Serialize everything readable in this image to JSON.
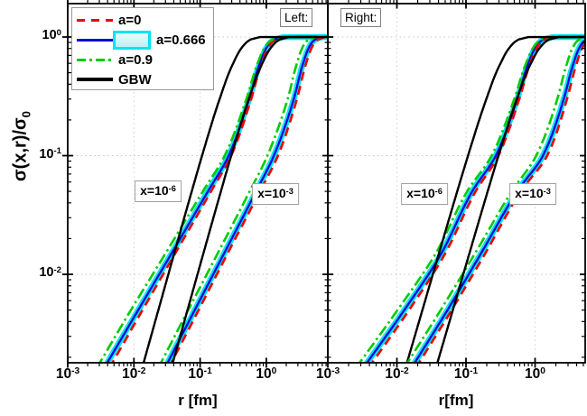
{
  "chart_data": {
    "type": "line",
    "ylabel": {
      "main": "σ(x,r)/σ",
      "sub": "0"
    },
    "y_ticks": [
      {
        "base": "10",
        "exp": "0"
      },
      {
        "base": "10",
        "exp": "-1"
      },
      {
        "base": "10",
        "exp": "-2"
      }
    ],
    "y_tick_logs": [
      0,
      -1,
      -2
    ],
    "x_ticks": [
      {
        "base": "10",
        "exp": "-3"
      },
      {
        "base": "10",
        "exp": "-2"
      },
      {
        "base": "10",
        "exp": "-1"
      },
      {
        "base": "10",
        "exp": "0"
      }
    ],
    "x_tick_logs": [
      -3,
      -2,
      -1,
      0
    ],
    "x_range_log": [
      -3,
      0.93
    ],
    "y_range_log": [
      -2.745,
      0.281
    ],
    "grid": "dotted",
    "legend_position": "top-left",
    "N_levels": [
      0.0016,
      0.005,
      0.015,
      0.05,
      0.1,
      0.3,
      0.6,
      0.9,
      0.98,
      0.999
    ],
    "series_styles": [
      {
        "key": "a0666band",
        "name": "a=0.666 band",
        "color": "#00e6f0",
        "style": "solid",
        "width": 6.5
      },
      {
        "key": "a0666",
        "name": "a=0.666",
        "color": "#0000dd",
        "style": "solid",
        "width": 2.3
      },
      {
        "key": "a0",
        "name": "a=0",
        "color": "#ee0000",
        "style": "dashed",
        "width": 2.6
      },
      {
        "key": "a09",
        "name": "a=0.9",
        "color": "#00cc00",
        "style": "dashdot",
        "width": 2.6
      },
      {
        "key": "gbw",
        "name": "GBW",
        "color": "#000000",
        "style": "solid",
        "width": 2.4
      }
    ],
    "panels": [
      {
        "tag": "Left:",
        "xlabel": "r [fm]",
        "groups": [
          {
            "label": {
              "base": "x=10",
              "exp": "-6"
            },
            "curves": {
              "gbw": [
                0.0132,
                0.0234,
                0.0406,
                0.0747,
                0.107,
                0.197,
                0.316,
                0.5,
                0.653,
                0.8
              ],
              "a0": [
                0.0042,
                0.0135,
                0.042,
                0.146,
                0.295,
                0.59,
                0.85,
                1.21,
                1.56,
                1.9
              ],
              "a0666": [
                0.0035,
                0.0116,
                0.037,
                0.131,
                0.27,
                0.55,
                0.8,
                1.15,
                1.5,
                1.8
              ],
              "a09": [
                0.0027,
                0.009,
                0.03,
                0.11,
                0.235,
                0.5,
                0.74,
                1.08,
                1.42,
                1.7
              ]
            }
          },
          {
            "label": {
              "base": "x=10",
              "exp": "-3"
            },
            "curves": {
              "gbw": [
                0.0364,
                0.0645,
                0.112,
                0.206,
                0.295,
                0.543,
                0.871,
                1.38,
                1.8,
                2.2
              ],
              "a0": [
                0.033,
                0.095,
                0.26,
                0.8,
                1.5,
                2.9,
                4.0,
                5.4,
                6.6,
                7.6
              ],
              "a0666": [
                0.029,
                0.083,
                0.23,
                0.7,
                1.3,
                2.6,
                3.6,
                4.9,
                6.0,
                7.0
              ],
              "a09": [
                0.023,
                0.066,
                0.184,
                0.56,
                1.04,
                2.1,
                2.9,
                3.9,
                4.8,
                5.6
              ]
            }
          }
        ]
      },
      {
        "tag": "Right:",
        "xlabel": "r[fm]",
        "groups": [
          {
            "label": {
              "base": "x=10",
              "exp": "-6"
            },
            "curves": {
              "gbw": [
                0.0132,
                0.0234,
                0.0406,
                0.0747,
                0.107,
                0.197,
                0.316,
                0.5,
                0.653,
                0.8
              ],
              "a0": [
                0.0038,
                0.015,
                0.05,
                0.138,
                0.295,
                0.59,
                0.85,
                1.21,
                1.56,
                1.9
              ],
              "a0666": [
                0.0032,
                0.0128,
                0.044,
                0.123,
                0.27,
                0.55,
                0.8,
                1.15,
                1.5,
                1.8
              ],
              "a09": [
                0.0025,
                0.0102,
                0.0365,
                0.104,
                0.235,
                0.5,
                0.74,
                1.08,
                1.42,
                1.7
              ]
            }
          },
          {
            "label": {
              "base": "x=10",
              "exp": "-3"
            },
            "curves": {
              "gbw": [
                0.0364,
                0.0645,
                0.112,
                0.206,
                0.295,
                0.543,
                0.871,
                1.38,
                1.8,
                2.2
              ],
              "a0": [
                0.0185,
                0.062,
                0.19,
                0.62,
                1.5,
                2.9,
                4.0,
                5.4,
                6.6,
                7.6
              ],
              "a0666": [
                0.016,
                0.054,
                0.165,
                0.55,
                1.3,
                2.6,
                3.6,
                4.9,
                6.0,
                7.0
              ],
              "a09": [
                0.0125,
                0.043,
                0.135,
                0.46,
                1.04,
                2.1,
                2.9,
                3.9,
                4.8,
                5.6
              ]
            }
          }
        ]
      }
    ]
  },
  "legend": {
    "entries": [
      {
        "label": "a=0",
        "style": "dashed-red"
      },
      {
        "label": "a=0.666",
        "style": "blue-with-cyan-band"
      },
      {
        "label": "a=0.9",
        "style": "dashdot-green"
      },
      {
        "label": "GBW",
        "style": "solid-black"
      }
    ]
  },
  "colors": {
    "red": "#ee0000",
    "blue": "#0000dd",
    "cyan": "#00e6f0",
    "green": "#00cc00",
    "black": "#000000",
    "grid": "#c6c6c6",
    "box_border": "#999999"
  }
}
